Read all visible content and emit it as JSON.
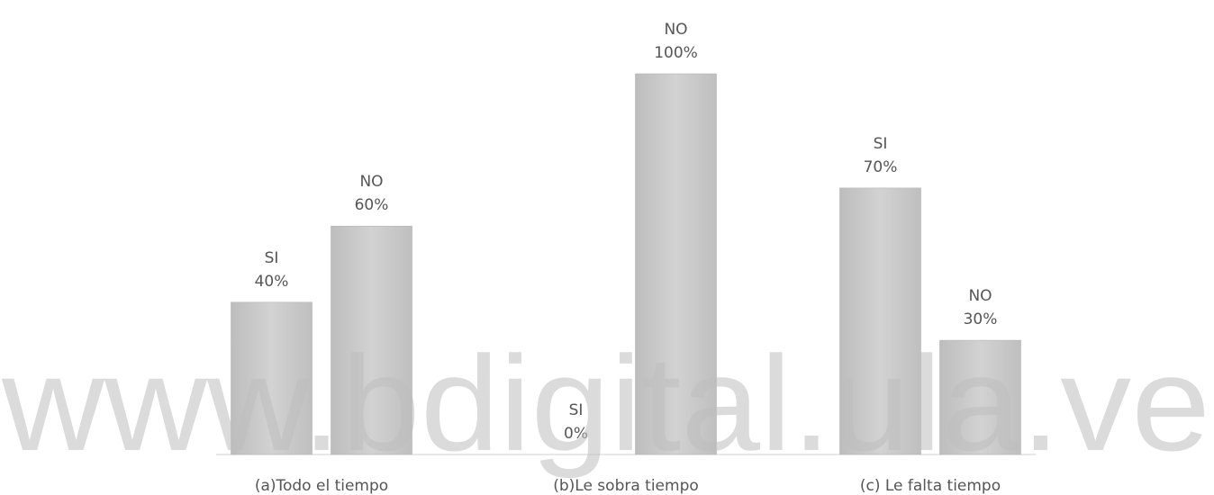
{
  "chart_data": {
    "type": "bar",
    "categories": [
      "(a)Todo el tiempo",
      "(b)Le sobra tiempo",
      "(c) Le falta tiempo"
    ],
    "series": [
      {
        "name": "SI",
        "color": "#c9c9c9",
        "values": [
          40,
          0,
          70
        ],
        "value_labels": [
          "40%",
          "0%",
          "70%"
        ]
      },
      {
        "name": "NO",
        "color": "#c9c9c9",
        "values": [
          60,
          100,
          30
        ],
        "value_labels": [
          "60%",
          "100%",
          "30%"
        ]
      }
    ],
    "ylim": [
      0,
      100
    ],
    "watermark": "www.bdigital.ula.ve"
  }
}
